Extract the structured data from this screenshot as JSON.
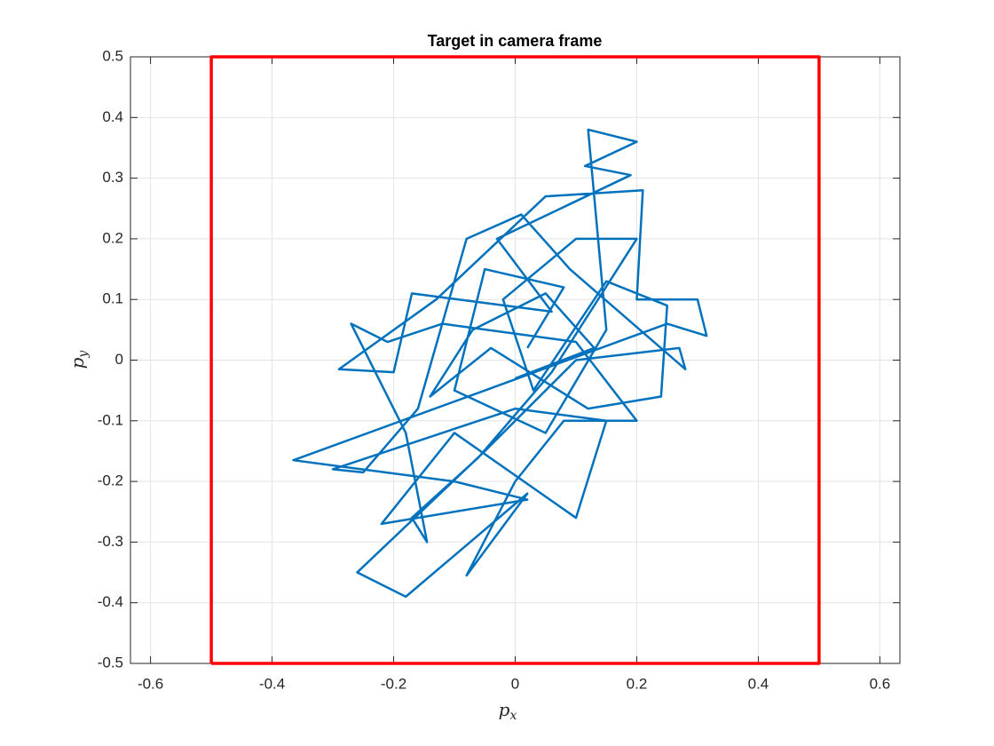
{
  "chart_data": {
    "type": "line",
    "title": "Target in camera frame",
    "xlabel": "px",
    "ylabel": "py",
    "xlim": [
      -0.633,
      0.633
    ],
    "ylim": [
      -0.5,
      0.5
    ],
    "xticks": [
      -0.6,
      -0.4,
      -0.2,
      0,
      0.2,
      0.4,
      0.6
    ],
    "yticks": [
      -0.5,
      -0.4,
      -0.3,
      -0.2,
      -0.1,
      0,
      0.1,
      0.2,
      0.3,
      0.4,
      0.5
    ],
    "grid": true,
    "series": [
      {
        "color": "#0072bd",
        "x": [
          0.02,
          0.08,
          -0.05,
          -0.1,
          0.05,
          0.15,
          0.12,
          0.2,
          0.115,
          0.19,
          -0.03,
          0.06,
          -0.17,
          -0.2,
          -0.29,
          -0.13,
          0.05,
          0.21,
          0.2,
          0.3,
          0.315,
          0.25,
          -0.05,
          -0.365,
          -0.1,
          0.02,
          -0.22,
          -0.1,
          0.1,
          0.15,
          0,
          -0.3,
          -0.25,
          -0.16,
          -0.08,
          0.01,
          0.09,
          0.28,
          0.27,
          0.1,
          -0.05,
          -0.26,
          -0.18,
          0.02,
          -0.08,
          0,
          0.08,
          0.2,
          0.1,
          -0.12,
          -0.21,
          -0.27,
          -0.18,
          -0.145,
          -0.17,
          -0.06,
          0.06,
          0.2,
          0.1,
          -0.02,
          0.03,
          0.15,
          0.25,
          0.24,
          0.12,
          -0.04,
          -0.14,
          -0.07,
          0.05,
          0.13,
          0
        ],
        "values": [
          0.02,
          0.12,
          0.15,
          -0.05,
          -0.12,
          0.05,
          0.38,
          0.36,
          0.32,
          0.305,
          0.2,
          0.08,
          0.11,
          -0.02,
          -0.015,
          0.1,
          0.27,
          0.28,
          0.1,
          0.1,
          0.04,
          0.06,
          -0.05,
          -0.165,
          -0.2,
          -0.23,
          -0.27,
          -0.12,
          -0.26,
          -0.1,
          -0.08,
          -0.18,
          -0.185,
          -0.08,
          0.2,
          0.24,
          0.15,
          -0.015,
          0.02,
          0,
          -0.15,
          -0.35,
          -0.39,
          -0.22,
          -0.355,
          -0.2,
          -0.1,
          -0.1,
          0.03,
          0.06,
          0.03,
          0.06,
          -0.12,
          -0.3,
          -0.26,
          -0.16,
          -0.02,
          0.2,
          0.2,
          0.1,
          -0.05,
          0.13,
          0.09,
          -0.06,
          -0.08,
          0.02,
          -0.06,
          0.05,
          0.11,
          0.02,
          -0.03
        ]
      },
      {
        "color": "#ff0000",
        "x": [
          -0.5,
          0.5,
          0.5,
          -0.5,
          -0.5
        ],
        "values": [
          -0.5,
          -0.5,
          0.5,
          0.5,
          -0.5
        ]
      }
    ]
  }
}
